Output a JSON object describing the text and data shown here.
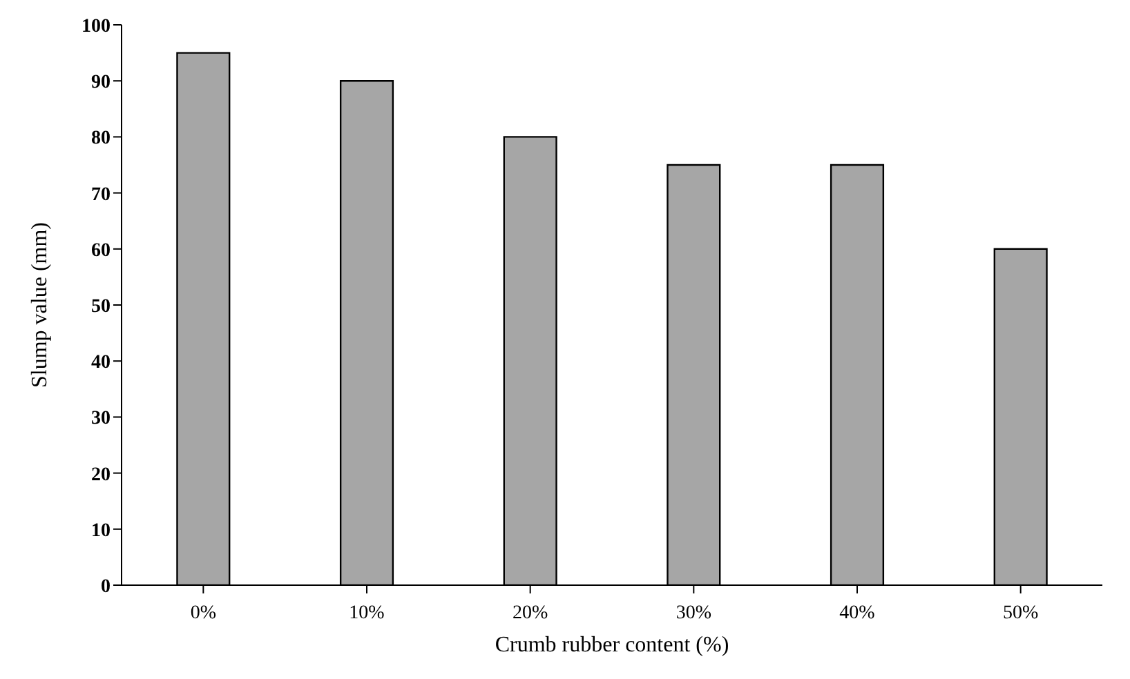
{
  "chart_data": {
    "type": "bar",
    "xlabel": "Crumb rubber content (%)",
    "ylabel": "Slump value (mm)",
    "categories": [
      "0%",
      "10%",
      "20%",
      "30%",
      "40%",
      "50%"
    ],
    "values": [
      95,
      90,
      80,
      75,
      75,
      60
    ],
    "color": "#a6a6a6",
    "ylim": [
      0,
      100
    ],
    "yticks": [
      0,
      10,
      20,
      30,
      40,
      50,
      60,
      70,
      80,
      90,
      100
    ]
  }
}
